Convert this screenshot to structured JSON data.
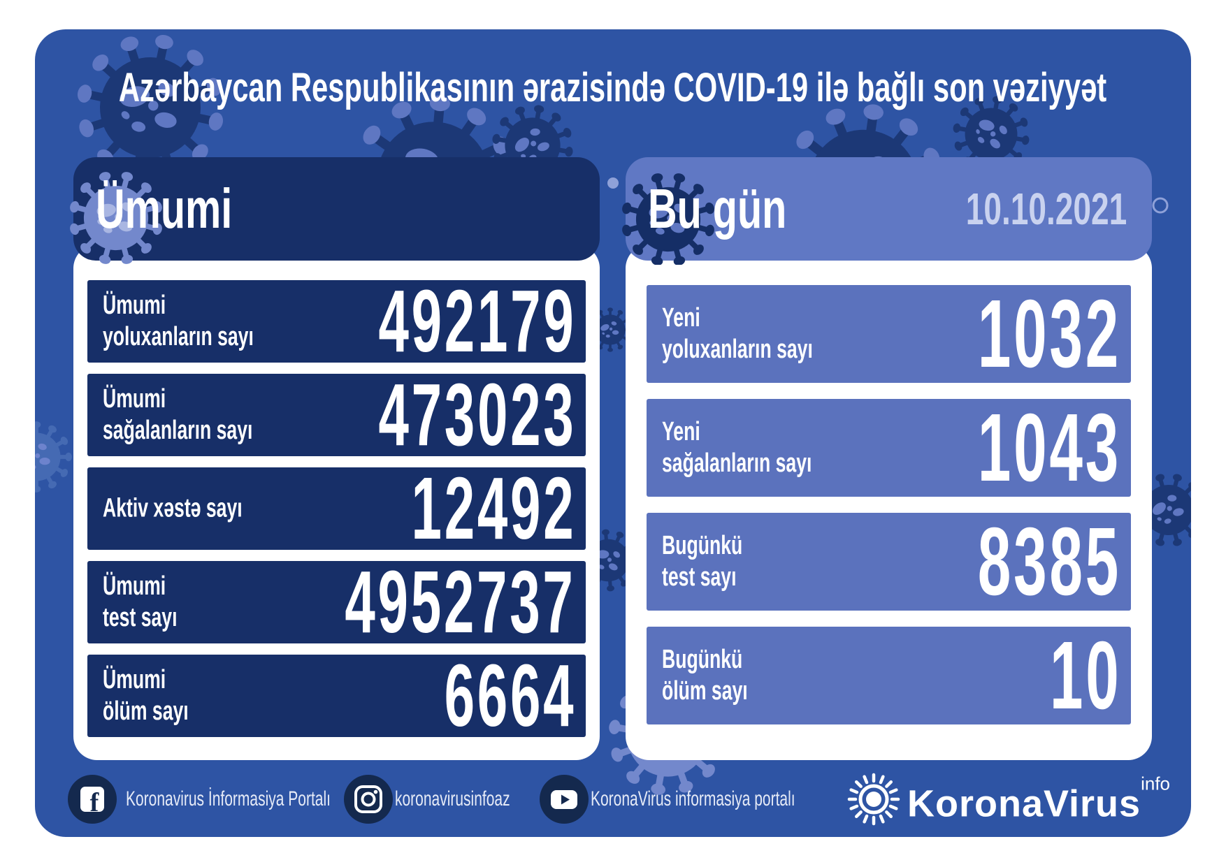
{
  "title": "Azərbaycan Respublikasının ərazisində COVID-19 ilə bağlı son vəziyyət",
  "left_panel": {
    "header": "Ümumi",
    "rows": [
      {
        "label_line1": "Ümumi",
        "label_line2": "yoluxanların sayı",
        "value": "492179"
      },
      {
        "label_line1": "Ümumi",
        "label_line2": "sağalanların sayı",
        "value": "473023"
      },
      {
        "label_line1": "Aktiv xəstə sayı",
        "label_line2": "",
        "value": "12492"
      },
      {
        "label_line1": "Ümumi",
        "label_line2": "test sayı",
        "value": "4952737"
      },
      {
        "label_line1": "Ümumi",
        "label_line2": "ölüm sayı",
        "value": "6664"
      }
    ]
  },
  "right_panel": {
    "header": "Bu gün",
    "date": "10.10.2021",
    "rows": [
      {
        "label_line1": "Yeni",
        "label_line2": "yoluxanların sayı",
        "value": "1032"
      },
      {
        "label_line1": "Yeni",
        "label_line2": "sağalanların sayı",
        "value": "1043"
      },
      {
        "label_line1": "Bugünkü",
        "label_line2": "test sayı",
        "value": "8385"
      },
      {
        "label_line1": "Bugünkü",
        "label_line2": "ölüm sayı",
        "value": "10"
      }
    ]
  },
  "footer": {
    "social": [
      {
        "icon": "facebook-icon",
        "label": "Koronavirus İnformasiya Portalı"
      },
      {
        "icon": "instagram-icon",
        "label": "koronavirusinfoaz"
      },
      {
        "icon": "youtube-icon",
        "label": "KoronaVirus informasiya portalı"
      }
    ],
    "logo": {
      "icon": "virus-icon",
      "text": "KoronaVirus",
      "superscript": "info"
    }
  },
  "colors": {
    "panel_blue": "#2e54a4",
    "navy": "#172f68",
    "periwinkle": "#5b72bd",
    "periwinkle_header": "#6078c4",
    "date_text": "#c9d2ef",
    "footer_icon_bg": "#14294e",
    "virus_dark": "#1c3876",
    "virus_spot": "#5f77c2",
    "virus_light": "#7388cc",
    "virus_light_spot": "#a9b6e2"
  }
}
